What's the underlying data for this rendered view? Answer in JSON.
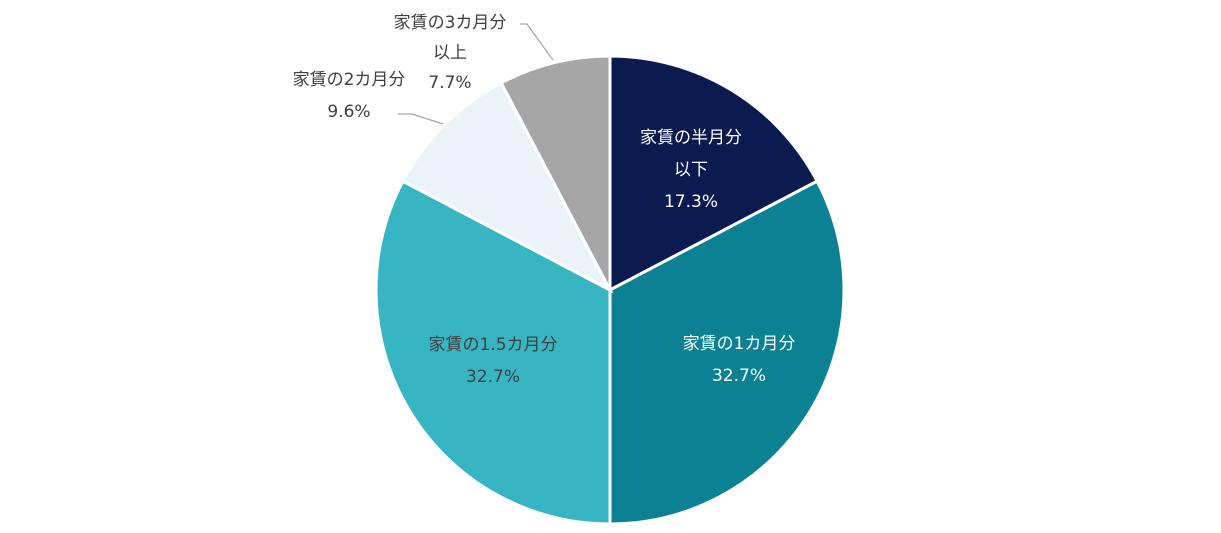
{
  "chart_data": {
    "type": "pie",
    "title": "",
    "start_angle_deg": 0,
    "direction": "clockwise",
    "slices": [
      {
        "name": "家賃の半月分以下",
        "label_lines": [
          "家賃の半月分",
          "以下"
        ],
        "value": 17.3,
        "value_label": "17.3%",
        "color": "#0b1b50",
        "label_color": "#ffffff",
        "label_mode": "inside"
      },
      {
        "name": "家賃の1カ月分",
        "label_lines": [
          "家賃の1カ月分"
        ],
        "value": 32.7,
        "value_label": "32.7%",
        "color": "#0b8193",
        "label_color": "#ffffff",
        "label_mode": "inside"
      },
      {
        "name": "家賃の1.5カ月分",
        "label_lines": [
          "家賃の1.5カ月分"
        ],
        "value": 32.7,
        "value_label": "32.7%",
        "color": "#38b5c3",
        "label_color": "#404040",
        "label_mode": "inside"
      },
      {
        "name": "家賃の2カ月分",
        "label_lines": [
          "家賃の2カ月分"
        ],
        "value": 9.6,
        "value_label": "9.6%",
        "color": "#ebf4f8",
        "label_color": "#404040",
        "label_mode": "outside"
      },
      {
        "name": "家賃の3カ月分以上",
        "label_lines": [
          "家賃の3カ月分",
          "以上"
        ],
        "value": 7.7,
        "value_label": "7.7%",
        "color": "#a6a6a6",
        "label_color": "#404040",
        "label_mode": "outside"
      }
    ]
  }
}
